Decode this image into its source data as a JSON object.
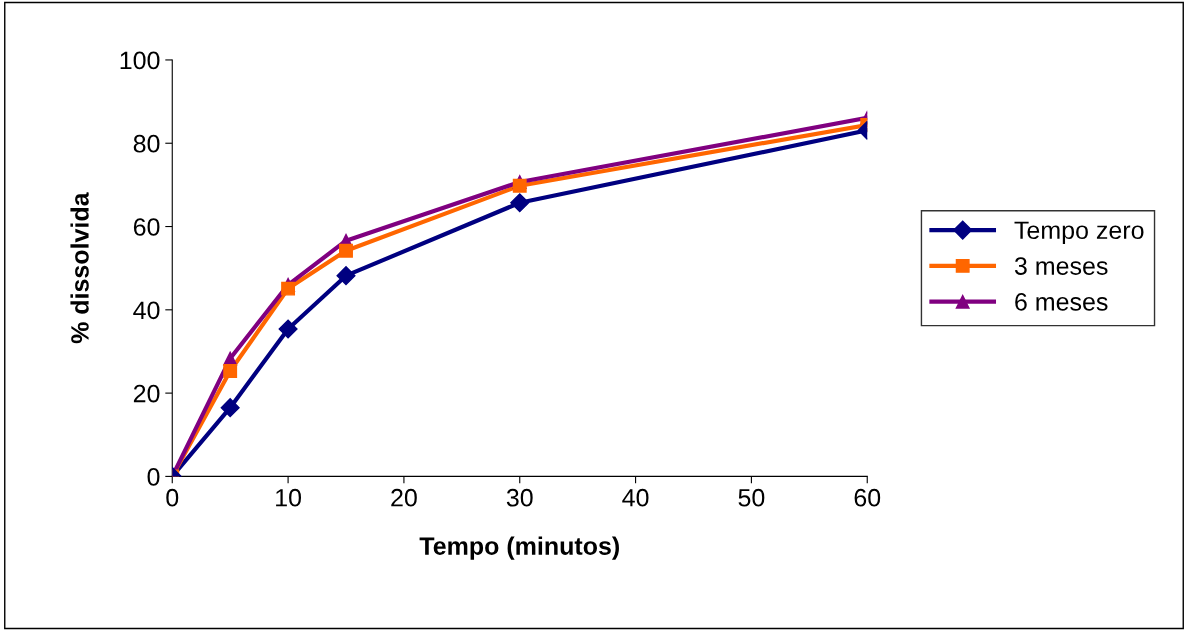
{
  "chart_data": {
    "type": "line",
    "xlabel": "Tempo (minutos)",
    "ylabel": "% dissolvida",
    "x": [
      0,
      5,
      10,
      15,
      30,
      60
    ],
    "series": [
      {
        "name": "Tempo zero",
        "color": "#000080",
        "marker": "diamond",
        "values": [
          0,
          16.5,
          35.4,
          48.2,
          65.7,
          83.1
        ]
      },
      {
        "name": "3 meses",
        "color": "#ff6600",
        "marker": "square",
        "values": [
          0,
          25.3,
          45.1,
          54.2,
          69.8,
          84.4
        ]
      },
      {
        "name": "6 meses",
        "color": "#800080",
        "marker": "triangle",
        "values": [
          0,
          28.3,
          46,
          56.6,
          70.7,
          86.1
        ]
      }
    ],
    "xlim": [
      0,
      60
    ],
    "xticks": [
      0,
      10,
      20,
      30,
      40,
      50,
      60
    ],
    "ylim": [
      0,
      100
    ],
    "yticks": [
      0,
      20,
      40,
      60,
      80,
      100
    ],
    "grid": false,
    "legend": "right",
    "line_style": "solid"
  }
}
